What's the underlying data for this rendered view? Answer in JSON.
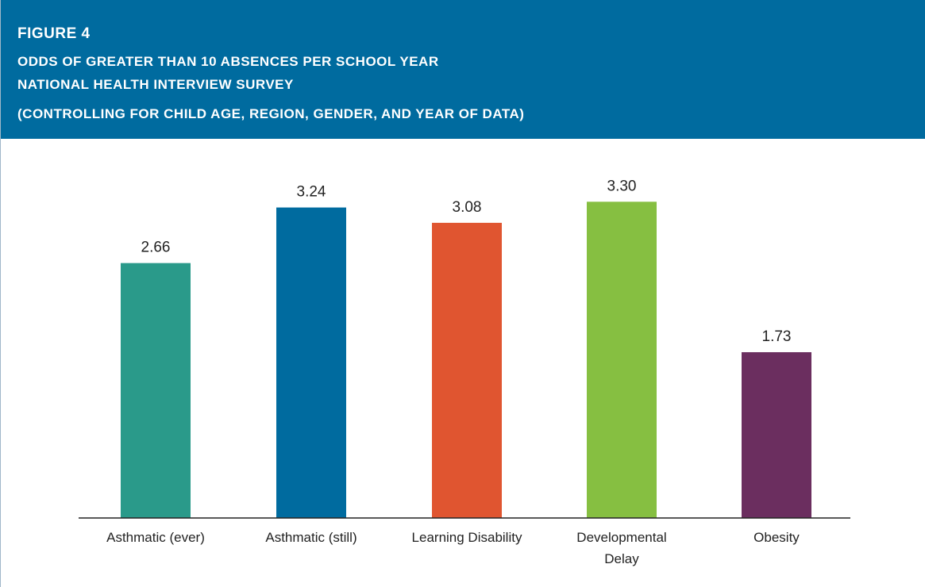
{
  "header": {
    "figure_label": "FIGURE 4",
    "title_line1": "ODDS OF GREATER THAN 10 ABSENCES PER SCHOOL YEAR",
    "title_line2": "NATIONAL HEALTH INTERVIEW SURVEY",
    "title_line3": "(CONTROLLING FOR CHILD AGE, REGION, GENDER, AND YEAR OF DATA)"
  },
  "colors": {
    "header_bg": "#006b9f",
    "bars": [
      "#2a9a8a",
      "#006b9f",
      "#e05530",
      "#86bf41",
      "#6b2e5f"
    ]
  },
  "chart_data": {
    "type": "bar",
    "categories": [
      [
        "Asthmatic (ever)"
      ],
      [
        "Asthmatic (still)"
      ],
      [
        "Learning Disability"
      ],
      [
        "Developmental",
        "Delay"
      ],
      [
        "Obesity"
      ]
    ],
    "values": [
      2.66,
      3.24,
      3.08,
      3.3,
      1.73
    ],
    "value_labels": [
      "2.66",
      "3.24",
      "3.08",
      "3.30",
      "1.73"
    ],
    "title": "ODDS OF GREATER THAN 10 ABSENCES PER SCHOOL YEAR",
    "xlabel": "",
    "ylabel": "",
    "ylim": [
      0,
      3.7
    ],
    "grid": false,
    "legend": "none"
  }
}
